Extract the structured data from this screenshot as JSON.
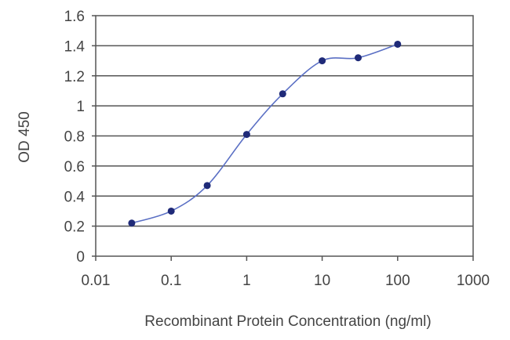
{
  "chart_data": {
    "type": "line",
    "title": "",
    "xlabel": "Recombinant Protein Concentration (ng/ml)",
    "ylabel": "OD 450",
    "x_scale": "log",
    "xlim": [
      0.01,
      1000
    ],
    "ylim": [
      0,
      1.6
    ],
    "x_ticks": [
      "0.01",
      "0.1",
      "1",
      "10",
      "100",
      "1000"
    ],
    "y_ticks": [
      "0",
      "0.2",
      "0.4",
      "0.6",
      "0.8",
      "1",
      "1.2",
      "1.4",
      "1.6"
    ],
    "grid": "horizontal",
    "legend": "none",
    "series": [
      {
        "x": [
          0.03,
          0.1,
          0.3,
          1,
          3,
          10,
          30,
          100
        ],
        "y": [
          0.22,
          0.3,
          0.47,
          0.81,
          1.08,
          1.3,
          1.32,
          1.41
        ]
      }
    ],
    "colors": {
      "line": "#5a6fc4",
      "marker": "#1f2a78",
      "grid": "#555555",
      "axis": "#555555",
      "text": "#444444"
    }
  }
}
